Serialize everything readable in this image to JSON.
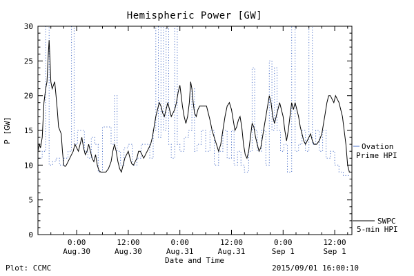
{
  "title": "Hemispheric Power [GW]",
  "footer": {
    "left": "Plot: CCMC",
    "right": "2015/09/01 16:00:10"
  },
  "axes": {
    "xlabel": "Date and Time",
    "ylabel": "P [GW]",
    "ylim": [
      0,
      30
    ],
    "xlim": [
      0,
      73
    ],
    "y_ticks": [
      0,
      5,
      10,
      15,
      20,
      25,
      30
    ],
    "x_ticks": [
      {
        "t": 9,
        "time": "0:00",
        "date": "Aug.30"
      },
      {
        "t": 21,
        "time": "12:00",
        "date": "Aug.30"
      },
      {
        "t": 33,
        "time": "0:00",
        "date": "Aug.31"
      },
      {
        "t": 45,
        "time": "12:00",
        "date": "Aug.31"
      },
      {
        "t": 57,
        "time": "0:00",
        "date": "Sep 1"
      },
      {
        "t": 69,
        "time": "12:00",
        "date": "Sep 1"
      }
    ]
  },
  "legend": {
    "ovation": {
      "line1": "Ovation",
      "line2": "Prime HPI"
    },
    "swpc": {
      "line1": "SWPC",
      "line2": "5-min HPI"
    }
  },
  "colors": {
    "swpc": "#000000",
    "ovation": "#4a6fc8"
  },
  "chart_data": {
    "type": "line",
    "title": "Hemispheric Power [GW]",
    "xlabel": "Date and Time",
    "ylabel": "P [GW]",
    "ylim": [
      0,
      30
    ],
    "xlim_hours": [
      0,
      73
    ],
    "x_axis_note": "t in hours; t=9 corresponds to tick 0:00 Aug.30, ticks every 12 h through 12:00 Sep 1 (t=69)",
    "grid": false,
    "legend_position": "right-outside",
    "series": [
      {
        "name": "Ovation Prime HPI",
        "color": "#4a6fc8",
        "style": "dotted",
        "interp": "step",
        "points": [
          [
            0,
            11
          ],
          [
            1,
            12
          ],
          [
            1.8,
            30
          ],
          [
            2.6,
            10
          ],
          [
            3.4,
            10.5
          ],
          [
            4.2,
            11
          ],
          [
            5,
            10
          ],
          [
            6,
            11
          ],
          [
            7,
            12
          ],
          [
            7.8,
            30
          ],
          [
            8.4,
            13
          ],
          [
            9.2,
            15
          ],
          [
            10,
            15
          ],
          [
            10.8,
            12
          ],
          [
            11.6,
            11
          ],
          [
            12.4,
            14
          ],
          [
            13.2,
            13
          ],
          [
            14,
            9
          ],
          [
            15,
            15.5
          ],
          [
            16,
            15.5
          ],
          [
            17,
            13
          ],
          [
            17.8,
            20
          ],
          [
            18.4,
            12
          ],
          [
            19.2,
            10
          ],
          [
            20,
            12.5
          ],
          [
            21,
            13
          ],
          [
            22,
            10
          ],
          [
            23,
            11
          ],
          [
            24,
            13
          ],
          [
            25,
            13
          ],
          [
            26,
            11
          ],
          [
            26.8,
            15
          ],
          [
            27.4,
            30
          ],
          [
            28,
            14
          ],
          [
            28.6,
            30
          ],
          [
            29.2,
            15
          ],
          [
            29.8,
            30
          ],
          [
            30.4,
            13
          ],
          [
            31,
            11
          ],
          [
            31.8,
            30
          ],
          [
            32.4,
            13
          ],
          [
            33,
            12
          ],
          [
            34,
            14
          ],
          [
            35,
            15
          ],
          [
            35.8,
            21
          ],
          [
            36.4,
            12
          ],
          [
            37,
            13
          ],
          [
            38,
            15
          ],
          [
            39,
            12
          ],
          [
            40,
            15
          ],
          [
            41,
            10
          ],
          [
            42,
            12
          ],
          [
            43,
            15
          ],
          [
            44,
            11
          ],
          [
            45,
            15
          ],
          [
            45.6,
            10
          ],
          [
            46.4,
            12
          ],
          [
            47.2,
            10
          ],
          [
            48,
            9
          ],
          [
            49,
            12
          ],
          [
            49.8,
            24
          ],
          [
            50.4,
            15
          ],
          [
            51,
            12
          ],
          [
            52,
            15
          ],
          [
            53,
            10
          ],
          [
            53.8,
            25
          ],
          [
            54.4,
            15
          ],
          [
            55,
            24
          ],
          [
            55.6,
            15
          ],
          [
            56.4,
            12
          ],
          [
            57.2,
            13
          ],
          [
            58,
            9
          ],
          [
            59,
            30
          ],
          [
            59.8,
            12
          ],
          [
            60.6,
            13
          ],
          [
            61.4,
            15
          ],
          [
            62.2,
            12
          ],
          [
            63,
            30
          ],
          [
            63.8,
            13
          ],
          [
            64.6,
            15
          ],
          [
            65.4,
            12
          ],
          [
            66.2,
            15
          ],
          [
            67,
            11
          ],
          [
            68,
            12
          ],
          [
            69,
            10
          ],
          [
            70,
            9
          ],
          [
            71,
            8.5
          ],
          [
            72.4,
            8.5
          ]
        ]
      },
      {
        "name": "SWPC 5-min HPI",
        "color": "#000000",
        "style": "solid",
        "interp": "linear",
        "points": [
          [
            0,
            12
          ],
          [
            0.3,
            13
          ],
          [
            0.6,
            12.5
          ],
          [
            1,
            14
          ],
          [
            1.4,
            19
          ],
          [
            1.8,
            21
          ],
          [
            2.1,
            22
          ],
          [
            2.4,
            26
          ],
          [
            2.6,
            28
          ],
          [
            2.8,
            25
          ],
          [
            3,
            22
          ],
          [
            3.3,
            21
          ],
          [
            3.6,
            21.5
          ],
          [
            3.9,
            22
          ],
          [
            4.2,
            20
          ],
          [
            4.5,
            18
          ],
          [
            4.8,
            15.5
          ],
          [
            5.1,
            15
          ],
          [
            5.4,
            14.5
          ],
          [
            5.7,
            12
          ],
          [
            6,
            10
          ],
          [
            6.3,
            9.8
          ],
          [
            6.6,
            10
          ],
          [
            7,
            10.5
          ],
          [
            7.4,
            11
          ],
          [
            7.8,
            11.5
          ],
          [
            8.2,
            12
          ],
          [
            8.6,
            13
          ],
          [
            9,
            12.5
          ],
          [
            9.4,
            12
          ],
          [
            9.8,
            13
          ],
          [
            10.2,
            14
          ],
          [
            10.6,
            12.5
          ],
          [
            11,
            11.5
          ],
          [
            11.4,
            12
          ],
          [
            11.8,
            13
          ],
          [
            12.2,
            12
          ],
          [
            12.6,
            11
          ],
          [
            13,
            10.5
          ],
          [
            13.4,
            11.5
          ],
          [
            13.8,
            10
          ],
          [
            14.2,
            9.2
          ],
          [
            14.6,
            9
          ],
          [
            15.2,
            9
          ],
          [
            15.8,
            9
          ],
          [
            16.4,
            9.5
          ],
          [
            17,
            10.5
          ],
          [
            17.4,
            12
          ],
          [
            17.8,
            13
          ],
          [
            18.2,
            12
          ],
          [
            18.6,
            10.5
          ],
          [
            19,
            9.5
          ],
          [
            19.4,
            9
          ],
          [
            19.8,
            10
          ],
          [
            20.2,
            11
          ],
          [
            20.6,
            11.5
          ],
          [
            21,
            12
          ],
          [
            21.4,
            11
          ],
          [
            21.8,
            10.2
          ],
          [
            22.2,
            10
          ],
          [
            22.6,
            10.5
          ],
          [
            23,
            11
          ],
          [
            23.4,
            12
          ],
          [
            23.8,
            12
          ],
          [
            24.2,
            11.5
          ],
          [
            24.6,
            11
          ],
          [
            25,
            11.5
          ],
          [
            25.4,
            12
          ],
          [
            25.8,
            12.5
          ],
          [
            26.2,
            13
          ],
          [
            26.6,
            14
          ],
          [
            27,
            15.5
          ],
          [
            27.4,
            17
          ],
          [
            27.8,
            18
          ],
          [
            28.2,
            19
          ],
          [
            28.6,
            18.5
          ],
          [
            29,
            17.5
          ],
          [
            29.4,
            17
          ],
          [
            29.8,
            18
          ],
          [
            30.2,
            19
          ],
          [
            30.6,
            18
          ],
          [
            31,
            17
          ],
          [
            31.4,
            17.5
          ],
          [
            31.8,
            18
          ],
          [
            32.2,
            19
          ],
          [
            32.6,
            20.5
          ],
          [
            33,
            21.5
          ],
          [
            33.3,
            20
          ],
          [
            33.6,
            18.5
          ],
          [
            34,
            17
          ],
          [
            34.4,
            16
          ],
          [
            34.8,
            17
          ],
          [
            35.2,
            19
          ],
          [
            35.5,
            22
          ],
          [
            35.8,
            21
          ],
          [
            36.1,
            19
          ],
          [
            36.4,
            17.5
          ],
          [
            36.8,
            17
          ],
          [
            37.2,
            18
          ],
          [
            37.6,
            18.5
          ],
          [
            38.4,
            18.5
          ],
          [
            39.2,
            18.5
          ],
          [
            39.6,
            17.5
          ],
          [
            40,
            16.5
          ],
          [
            40.5,
            15
          ],
          [
            41,
            14
          ],
          [
            41.5,
            13
          ],
          [
            42,
            12
          ],
          [
            42.5,
            13
          ],
          [
            43,
            15
          ],
          [
            43.5,
            17
          ],
          [
            44,
            18.5
          ],
          [
            44.5,
            19
          ],
          [
            45,
            18
          ],
          [
            45.4,
            16.5
          ],
          [
            45.8,
            15
          ],
          [
            46.2,
            15.5
          ],
          [
            46.6,
            16.5
          ],
          [
            47,
            17
          ],
          [
            47.4,
            15.5
          ],
          [
            47.8,
            13
          ],
          [
            48.2,
            11.5
          ],
          [
            48.6,
            11
          ],
          [
            49,
            12
          ],
          [
            49.4,
            14
          ],
          [
            49.8,
            16
          ],
          [
            50.2,
            15.5
          ],
          [
            50.6,
            14
          ],
          [
            51,
            13
          ],
          [
            51.4,
            12
          ],
          [
            51.8,
            12.5
          ],
          [
            52.2,
            14
          ],
          [
            52.6,
            15.5
          ],
          [
            53,
            17
          ],
          [
            53.4,
            18.5
          ],
          [
            53.8,
            20
          ],
          [
            54.2,
            19
          ],
          [
            54.6,
            17
          ],
          [
            55,
            16
          ],
          [
            55.4,
            17
          ],
          [
            55.8,
            18
          ],
          [
            56.2,
            19
          ],
          [
            56.6,
            18
          ],
          [
            57,
            17
          ],
          [
            57.4,
            15
          ],
          [
            57.8,
            13.5
          ],
          [
            58.2,
            15
          ],
          [
            58.6,
            17
          ],
          [
            59,
            19
          ],
          [
            59.4,
            18
          ],
          [
            59.8,
            19
          ],
          [
            60.2,
            18
          ],
          [
            60.6,
            17
          ],
          [
            61,
            15.5
          ],
          [
            61.4,
            14.5
          ],
          [
            61.8,
            13.5
          ],
          [
            62.2,
            13
          ],
          [
            62.6,
            13.5
          ],
          [
            63,
            14
          ],
          [
            63.4,
            14.5
          ],
          [
            63.8,
            13.5
          ],
          [
            64.2,
            13
          ],
          [
            64.8,
            13
          ],
          [
            65.4,
            13.5
          ],
          [
            66,
            14.5
          ],
          [
            66.4,
            16
          ],
          [
            66.8,
            17.5
          ],
          [
            67.2,
            19
          ],
          [
            67.6,
            20
          ],
          [
            68,
            20
          ],
          [
            68.4,
            19.5
          ],
          [
            68.8,
            19
          ],
          [
            69.2,
            20
          ],
          [
            69.6,
            19.5
          ],
          [
            70,
            19
          ],
          [
            70.4,
            18
          ],
          [
            70.8,
            17
          ],
          [
            71.2,
            15
          ],
          [
            71.6,
            13
          ],
          [
            72,
            10
          ],
          [
            72.4,
            9
          ],
          [
            72.6,
            9
          ]
        ]
      }
    ]
  }
}
